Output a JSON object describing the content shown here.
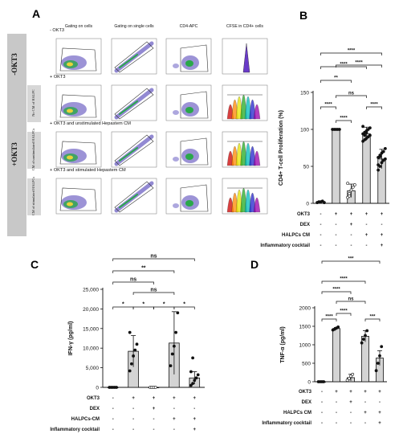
{
  "panel_letters": {
    "a": "A",
    "b": "B",
    "c": "C",
    "d": "D"
  },
  "panel_a": {
    "col_headers": [
      "Gating on cells",
      "Gating on single cells",
      "CD4-APC",
      "CFSE in CD4+ cells"
    ],
    "row_titles": [
      "- OKT3",
      "+ OKT3",
      "+ OKT3 and unstimulated Hepastem CM",
      "+ OKT3 and stimulated Hepastem CM"
    ],
    "side_labels": {
      "minus": "-OKT3",
      "plus": "+OKT3",
      "sub": [
        "No CM of HALPC",
        "CM of unstimulated HALPCs",
        "CM of stimulated HALPCs"
      ]
    }
  },
  "chart_data": [
    {
      "panel": "B",
      "type": "bar",
      "ylabel": "CD4+ T-cell Proliferation (%)",
      "ylim": [
        0,
        150
      ],
      "yticks": [
        0,
        50,
        100,
        150
      ],
      "categories": [
        "1",
        "2",
        "3",
        "4",
        "5"
      ],
      "values": [
        2,
        100,
        17,
        94,
        60
      ],
      "error": [
        1,
        1,
        9,
        9,
        13
      ],
      "condition_rows": [
        {
          "label": "OKT3",
          "values": [
            "-",
            "+",
            "+",
            "+",
            "+"
          ]
        },
        {
          "label": "DEX",
          "values": [
            "-",
            "-",
            "+",
            "-",
            "-"
          ]
        },
        {
          "label": "HALPCs CM",
          "values": [
            "-",
            "-",
            "-",
            "+",
            "+"
          ]
        },
        {
          "label": "Inflammatory cocktail",
          "values": [
            "-",
            "-",
            "-",
            "-",
            "+"
          ]
        }
      ],
      "brackets": [
        {
          "from": 1,
          "to": 2,
          "label": "****"
        },
        {
          "from": 2,
          "to": 3,
          "label": "****"
        },
        {
          "from": 2,
          "to": 4,
          "label": "ns"
        },
        {
          "from": 4,
          "to": 5,
          "label": "****"
        },
        {
          "from": 2,
          "to": 5,
          "label": "****"
        },
        {
          "from": 1,
          "to": 3,
          "label": "**"
        },
        {
          "from": 1,
          "to": 4,
          "label": "****"
        },
        {
          "from": 1,
          "to": 5,
          "label": "****"
        }
      ]
    },
    {
      "panel": "C",
      "type": "bar",
      "ylabel": "IFN-γ (pg/ml)",
      "ylim": [
        0,
        25000
      ],
      "yticks": [
        0,
        5000,
        10000,
        15000,
        20000,
        25000
      ],
      "ytick_labels": [
        "0",
        "5,000",
        "10,000",
        "15,000",
        "20,000",
        "25,000"
      ],
      "categories": [
        "1",
        "2",
        "3",
        "4",
        "5"
      ],
      "values": [
        0,
        9200,
        0,
        11300,
        2400
      ],
      "error": [
        0,
        4000,
        0,
        8000,
        1600
      ],
      "condition_rows": [
        {
          "label": "OKT3",
          "values": [
            "-",
            "+",
            "+",
            "+",
            "+"
          ]
        },
        {
          "label": "DEX",
          "values": [
            "-",
            "-",
            "+",
            "-",
            "-"
          ]
        },
        {
          "label": "HALPCs-CM",
          "values": [
            "-",
            "-",
            "-",
            "+",
            "+"
          ]
        },
        {
          "label": "Inflammatory cocktail",
          "values": [
            "-",
            "-",
            "-",
            "-",
            "+"
          ]
        }
      ],
      "brackets": [
        {
          "from": 1,
          "to": 2,
          "label": "*"
        },
        {
          "from": 2,
          "to": 3,
          "label": "*"
        },
        {
          "from": 3,
          "to": 4,
          "label": "*"
        },
        {
          "from": 4,
          "to": 5,
          "label": "*"
        },
        {
          "from": 2,
          "to": 4,
          "label": "ns"
        },
        {
          "from": 1,
          "to": 3,
          "label": "ns"
        },
        {
          "from": 1,
          "to": 4,
          "label": "**"
        },
        {
          "from": 1,
          "to": 5,
          "label": "ns"
        }
      ]
    },
    {
      "panel": "D",
      "type": "bar",
      "ylabel": "TNF-α (pg/ml)",
      "ylim": [
        0,
        2000
      ],
      "yticks": [
        0,
        500,
        1000,
        1500,
        2000
      ],
      "categories": [
        "1",
        "2",
        "3",
        "4",
        "5"
      ],
      "values": [
        0,
        1440,
        110,
        1230,
        640
      ],
      "error": [
        0,
        30,
        90,
        150,
        200
      ],
      "condition_rows": [
        {
          "label": "OKT3",
          "values": [
            "-",
            "+",
            "+",
            "+",
            "+"
          ]
        },
        {
          "label": "DEX",
          "values": [
            "-",
            "-",
            "+",
            "-",
            "-"
          ]
        },
        {
          "label": "HALPCs CM",
          "values": [
            "-",
            "-",
            "-",
            "+",
            "+"
          ]
        },
        {
          "label": "Inflammatory cocktail",
          "values": [
            "-",
            "-",
            "-",
            "-",
            "+"
          ]
        }
      ],
      "brackets": [
        {
          "from": 1,
          "to": 2,
          "label": "****"
        },
        {
          "from": 2,
          "to": 3,
          "label": "****"
        },
        {
          "from": 2,
          "to": 4,
          "label": "ns"
        },
        {
          "from": 4,
          "to": 5,
          "label": "***"
        },
        {
          "from": 1,
          "to": 3,
          "label": "****"
        },
        {
          "from": 1,
          "to": 4,
          "label": "****"
        },
        {
          "from": 1,
          "to": 5,
          "label": "***"
        }
      ]
    }
  ]
}
